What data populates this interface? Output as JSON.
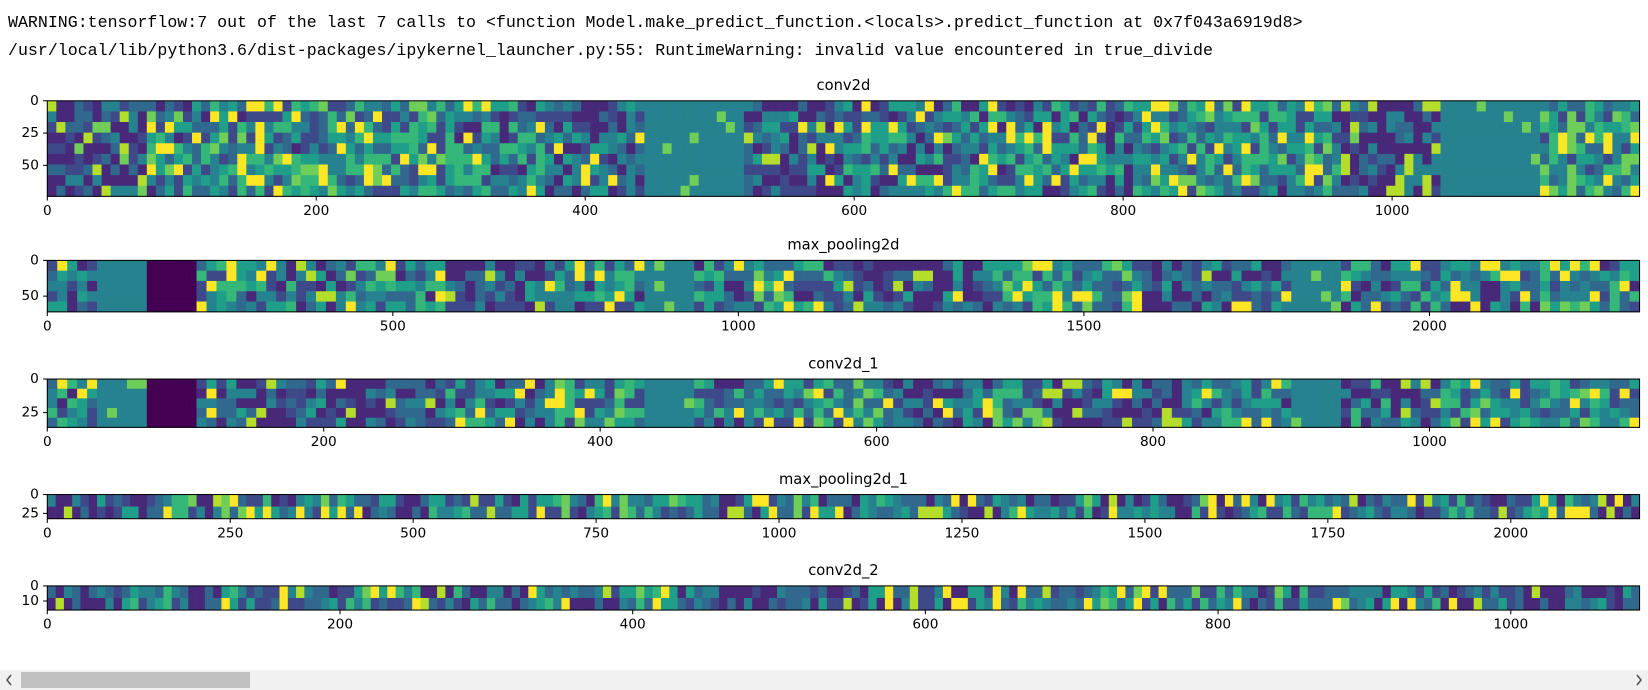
{
  "console": {
    "lines": [
      "WARNING:tensorflow:7 out of the last 7 calls to <function Model.make_predict_function.<locals>.predict_function at 0x7f043a6919d8>",
      "/usr/local/lib/python3.6/dist-packages/ipykernel_launcher.py:55: RuntimeWarning: invalid value encountered in true_divide"
    ]
  },
  "chart_data": [
    {
      "type": "image",
      "title": "conv2d",
      "xlim": [
        0,
        1184
      ],
      "ylim": [
        74,
        0
      ],
      "xticks": [
        0,
        200,
        400,
        600,
        800,
        1000
      ],
      "yticks": [
        0,
        25,
        50
      ]
    },
    {
      "type": "image",
      "title": "max_pooling2d",
      "xlim": [
        0,
        2304
      ],
      "ylim": [
        72,
        0
      ],
      "xticks": [
        0,
        500,
        1000,
        1500,
        2000
      ],
      "yticks": [
        0,
        50
      ]
    },
    {
      "type": "image",
      "title": "conv2d_1",
      "xlim": [
        0,
        1152
      ],
      "ylim": [
        36,
        0
      ],
      "xticks": [
        0,
        200,
        400,
        600,
        800,
        1000
      ],
      "yticks": [
        0,
        25
      ]
    },
    {
      "type": "image",
      "title": "max_pooling2d_1",
      "xlim": [
        0,
        2176
      ],
      "ylim": [
        32,
        0
      ],
      "xticks": [
        0,
        250,
        500,
        750,
        1000,
        1250,
        1500,
        1750,
        2000
      ],
      "yticks": [
        0,
        25
      ]
    },
    {
      "type": "image",
      "title": "conv2d_2",
      "xlim": [
        0,
        1088
      ],
      "ylim": [
        16,
        0
      ],
      "xticks": [
        0,
        200,
        400,
        600,
        800,
        1000
      ],
      "yticks": [
        0,
        10
      ]
    }
  ]
}
